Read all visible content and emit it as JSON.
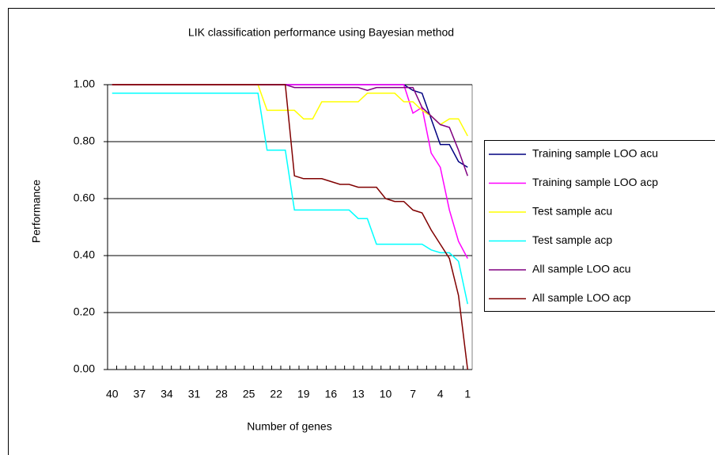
{
  "chart_data": {
    "type": "line",
    "title": "LIK classification performance using Bayesian method",
    "x_label": "Number of genes",
    "y_label": "Performance",
    "categories": [
      40,
      null,
      null,
      37,
      null,
      null,
      34,
      null,
      null,
      31,
      null,
      null,
      28,
      null,
      null,
      25,
      null,
      null,
      22,
      null,
      null,
      19,
      null,
      null,
      16,
      null,
      null,
      13,
      null,
      null,
      10,
      null,
      null,
      7,
      null,
      null,
      4,
      null,
      null,
      1
    ],
    "ylim": [
      0,
      1
    ],
    "yticks": [
      {
        "value": 0,
        "label": "0.00"
      },
      {
        "value": 0.2,
        "label": "0.20"
      },
      {
        "value": 0.4,
        "label": "0.40"
      },
      {
        "value": 0.6,
        "label": "0.60"
      },
      {
        "value": 0.8,
        "label": "0.80"
      },
      {
        "value": 1,
        "label": "1.00"
      }
    ],
    "grid": true,
    "legend": "right",
    "series": [
      {
        "name": "Training sample LOO acu",
        "color": "#000080",
        "values": [
          1,
          1,
          1,
          1,
          1,
          1,
          1,
          1,
          1,
          1,
          1,
          1,
          1,
          1,
          1,
          1,
          1,
          1,
          1,
          1,
          1,
          1,
          1,
          1,
          1,
          1,
          1,
          1,
          1,
          1,
          1,
          1,
          1,
          0.98,
          0.97,
          0.88,
          0.79,
          0.79,
          0.73,
          0.71
        ]
      },
      {
        "name": "Training sample LOO acp",
        "color": "#ff00ff",
        "values": [
          1,
          1,
          1,
          1,
          1,
          1,
          1,
          1,
          1,
          1,
          1,
          1,
          1,
          1,
          1,
          1,
          1,
          1,
          1,
          1,
          1,
          1,
          1,
          1,
          1,
          1,
          1,
          1,
          1,
          1,
          1,
          1,
          1,
          0.9,
          0.92,
          0.76,
          0.71,
          0.56,
          0.45,
          0.39
        ]
      },
      {
        "name": "Test sample acu",
        "color": "#ffff00",
        "values": [
          1,
          1,
          1,
          1,
          1,
          1,
          1,
          1,
          1,
          1,
          1,
          1,
          1,
          1,
          1,
          1,
          1,
          0.91,
          0.91,
          0.91,
          0.91,
          0.88,
          0.88,
          0.94,
          0.94,
          0.94,
          0.94,
          0.94,
          0.97,
          0.97,
          0.97,
          0.97,
          0.94,
          0.94,
          0.91,
          0.89,
          0.86,
          0.88,
          0.88,
          0.82
        ]
      },
      {
        "name": "Test sample acp",
        "color": "#00ffff",
        "values": [
          0.97,
          0.97,
          0.97,
          0.97,
          0.97,
          0.97,
          0.97,
          0.97,
          0.97,
          0.97,
          0.97,
          0.97,
          0.97,
          0.97,
          0.97,
          0.97,
          0.97,
          0.77,
          0.77,
          0.77,
          0.56,
          0.56,
          0.56,
          0.56,
          0.56,
          0.56,
          0.56,
          0.53,
          0.53,
          0.44,
          0.44,
          0.44,
          0.44,
          0.44,
          0.44,
          0.42,
          0.41,
          0.41,
          0.38,
          0.23
        ]
      },
      {
        "name": "All sample LOO acu",
        "color": "#800080",
        "values": [
          1,
          1,
          1,
          1,
          1,
          1,
          1,
          1,
          1,
          1,
          1,
          1,
          1,
          1,
          1,
          1,
          1,
          1,
          1,
          1,
          0.99,
          0.99,
          0.99,
          0.99,
          0.99,
          0.99,
          0.99,
          0.99,
          0.98,
          0.99,
          0.99,
          0.99,
          0.99,
          0.99,
          0.92,
          0.89,
          0.86,
          0.85,
          0.77,
          0.68
        ]
      },
      {
        "name": "All sample LOO acp",
        "color": "#800000",
        "values": [
          1,
          1,
          1,
          1,
          1,
          1,
          1,
          1,
          1,
          1,
          1,
          1,
          1,
          1,
          1,
          1,
          1,
          1,
          1,
          1,
          0.68,
          0.67,
          0.67,
          0.67,
          0.66,
          0.65,
          0.65,
          0.64,
          0.64,
          0.64,
          0.6,
          0.59,
          0.59,
          0.56,
          0.55,
          0.49,
          0.44,
          0.39,
          0.26,
          0
        ]
      }
    ]
  }
}
